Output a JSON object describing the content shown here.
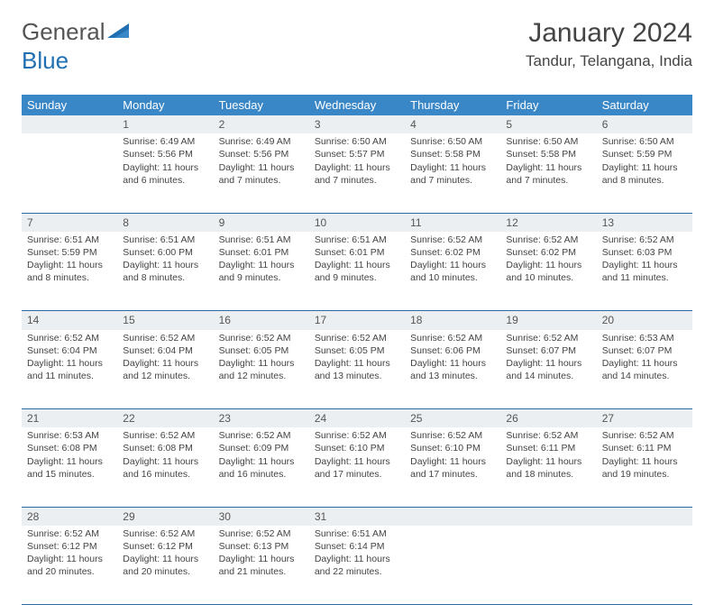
{
  "logo": {
    "text1": "General",
    "text2": "Blue",
    "accent": "#1f6fb2"
  },
  "header": {
    "month": "January 2024",
    "location": "Tandur, Telangana, India"
  },
  "colors": {
    "header_bg": "#3a87c8",
    "header_text": "#ffffff",
    "daynum_bg": "#eceff1",
    "rule": "#2a6aa0",
    "body_text": "#444444"
  },
  "weekdays": [
    "Sunday",
    "Monday",
    "Tuesday",
    "Wednesday",
    "Thursday",
    "Friday",
    "Saturday"
  ],
  "weeks": [
    {
      "nums": [
        "",
        "1",
        "2",
        "3",
        "4",
        "5",
        "6"
      ],
      "cells": [
        {
          "sunrise": "",
          "sunset": "",
          "daylight": ""
        },
        {
          "sunrise": "Sunrise: 6:49 AM",
          "sunset": "Sunset: 5:56 PM",
          "daylight": "Daylight: 11 hours and 6 minutes."
        },
        {
          "sunrise": "Sunrise: 6:49 AM",
          "sunset": "Sunset: 5:56 PM",
          "daylight": "Daylight: 11 hours and 7 minutes."
        },
        {
          "sunrise": "Sunrise: 6:50 AM",
          "sunset": "Sunset: 5:57 PM",
          "daylight": "Daylight: 11 hours and 7 minutes."
        },
        {
          "sunrise": "Sunrise: 6:50 AM",
          "sunset": "Sunset: 5:58 PM",
          "daylight": "Daylight: 11 hours and 7 minutes."
        },
        {
          "sunrise": "Sunrise: 6:50 AM",
          "sunset": "Sunset: 5:58 PM",
          "daylight": "Daylight: 11 hours and 7 minutes."
        },
        {
          "sunrise": "Sunrise: 6:50 AM",
          "sunset": "Sunset: 5:59 PM",
          "daylight": "Daylight: 11 hours and 8 minutes."
        }
      ]
    },
    {
      "nums": [
        "7",
        "8",
        "9",
        "10",
        "11",
        "12",
        "13"
      ],
      "cells": [
        {
          "sunrise": "Sunrise: 6:51 AM",
          "sunset": "Sunset: 5:59 PM",
          "daylight": "Daylight: 11 hours and 8 minutes."
        },
        {
          "sunrise": "Sunrise: 6:51 AM",
          "sunset": "Sunset: 6:00 PM",
          "daylight": "Daylight: 11 hours and 8 minutes."
        },
        {
          "sunrise": "Sunrise: 6:51 AM",
          "sunset": "Sunset: 6:01 PM",
          "daylight": "Daylight: 11 hours and 9 minutes."
        },
        {
          "sunrise": "Sunrise: 6:51 AM",
          "sunset": "Sunset: 6:01 PM",
          "daylight": "Daylight: 11 hours and 9 minutes."
        },
        {
          "sunrise": "Sunrise: 6:52 AM",
          "sunset": "Sunset: 6:02 PM",
          "daylight": "Daylight: 11 hours and 10 minutes."
        },
        {
          "sunrise": "Sunrise: 6:52 AM",
          "sunset": "Sunset: 6:02 PM",
          "daylight": "Daylight: 11 hours and 10 minutes."
        },
        {
          "sunrise": "Sunrise: 6:52 AM",
          "sunset": "Sunset: 6:03 PM",
          "daylight": "Daylight: 11 hours and 11 minutes."
        }
      ]
    },
    {
      "nums": [
        "14",
        "15",
        "16",
        "17",
        "18",
        "19",
        "20"
      ],
      "cells": [
        {
          "sunrise": "Sunrise: 6:52 AM",
          "sunset": "Sunset: 6:04 PM",
          "daylight": "Daylight: 11 hours and 11 minutes."
        },
        {
          "sunrise": "Sunrise: 6:52 AM",
          "sunset": "Sunset: 6:04 PM",
          "daylight": "Daylight: 11 hours and 12 minutes."
        },
        {
          "sunrise": "Sunrise: 6:52 AM",
          "sunset": "Sunset: 6:05 PM",
          "daylight": "Daylight: 11 hours and 12 minutes."
        },
        {
          "sunrise": "Sunrise: 6:52 AM",
          "sunset": "Sunset: 6:05 PM",
          "daylight": "Daylight: 11 hours and 13 minutes."
        },
        {
          "sunrise": "Sunrise: 6:52 AM",
          "sunset": "Sunset: 6:06 PM",
          "daylight": "Daylight: 11 hours and 13 minutes."
        },
        {
          "sunrise": "Sunrise: 6:52 AM",
          "sunset": "Sunset: 6:07 PM",
          "daylight": "Daylight: 11 hours and 14 minutes."
        },
        {
          "sunrise": "Sunrise: 6:53 AM",
          "sunset": "Sunset: 6:07 PM",
          "daylight": "Daylight: 11 hours and 14 minutes."
        }
      ]
    },
    {
      "nums": [
        "21",
        "22",
        "23",
        "24",
        "25",
        "26",
        "27"
      ],
      "cells": [
        {
          "sunrise": "Sunrise: 6:53 AM",
          "sunset": "Sunset: 6:08 PM",
          "daylight": "Daylight: 11 hours and 15 minutes."
        },
        {
          "sunrise": "Sunrise: 6:52 AM",
          "sunset": "Sunset: 6:08 PM",
          "daylight": "Daylight: 11 hours and 16 minutes."
        },
        {
          "sunrise": "Sunrise: 6:52 AM",
          "sunset": "Sunset: 6:09 PM",
          "daylight": "Daylight: 11 hours and 16 minutes."
        },
        {
          "sunrise": "Sunrise: 6:52 AM",
          "sunset": "Sunset: 6:10 PM",
          "daylight": "Daylight: 11 hours and 17 minutes."
        },
        {
          "sunrise": "Sunrise: 6:52 AM",
          "sunset": "Sunset: 6:10 PM",
          "daylight": "Daylight: 11 hours and 17 minutes."
        },
        {
          "sunrise": "Sunrise: 6:52 AM",
          "sunset": "Sunset: 6:11 PM",
          "daylight": "Daylight: 11 hours and 18 minutes."
        },
        {
          "sunrise": "Sunrise: 6:52 AM",
          "sunset": "Sunset: 6:11 PM",
          "daylight": "Daylight: 11 hours and 19 minutes."
        }
      ]
    },
    {
      "nums": [
        "28",
        "29",
        "30",
        "31",
        "",
        "",
        ""
      ],
      "cells": [
        {
          "sunrise": "Sunrise: 6:52 AM",
          "sunset": "Sunset: 6:12 PM",
          "daylight": "Daylight: 11 hours and 20 minutes."
        },
        {
          "sunrise": "Sunrise: 6:52 AM",
          "sunset": "Sunset: 6:12 PM",
          "daylight": "Daylight: 11 hours and 20 minutes."
        },
        {
          "sunrise": "Sunrise: 6:52 AM",
          "sunset": "Sunset: 6:13 PM",
          "daylight": "Daylight: 11 hours and 21 minutes."
        },
        {
          "sunrise": "Sunrise: 6:51 AM",
          "sunset": "Sunset: 6:14 PM",
          "daylight": "Daylight: 11 hours and 22 minutes."
        },
        {
          "sunrise": "",
          "sunset": "",
          "daylight": ""
        },
        {
          "sunrise": "",
          "sunset": "",
          "daylight": ""
        },
        {
          "sunrise": "",
          "sunset": "",
          "daylight": ""
        }
      ]
    }
  ]
}
